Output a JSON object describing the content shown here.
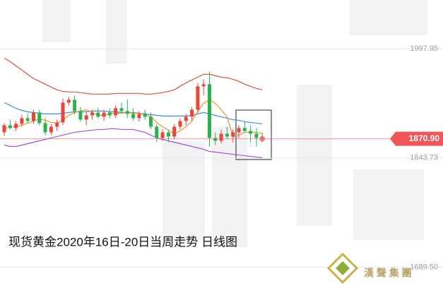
{
  "chart_data": {
    "type": "candlestick",
    "title": "现货黄金2020年16日-20日当周走势  日线图",
    "ylim": [
      1660,
      2067
    ],
    "yticks": [
      1997.95,
      1843.73,
      {
        "value": 1689.5,
        "label": "1689.50"
      }
    ],
    "grid": true,
    "up_color": "#e8453c",
    "down_color": "#2bb24c",
    "last_price": {
      "value": 1870.9,
      "label": "1870.90",
      "color": "#f0555a"
    },
    "open": [
      1880,
      1890,
      1886,
      1892,
      1900,
      1896,
      1908,
      1893,
      1880,
      1888,
      1894,
      1922,
      1926,
      1910,
      1898,
      1904,
      1908,
      1902,
      1908,
      1904,
      1914,
      1910,
      1906,
      1900,
      1906,
      1902,
      1888,
      1872,
      1880,
      1874,
      1888,
      1896,
      1902,
      1912,
      1945,
      1948,
      1872,
      1868,
      1878,
      1874,
      1880,
      1886,
      1882,
      1878,
      1872
    ],
    "high": [
      1893,
      1898,
      1896,
      1905,
      1906,
      1912,
      1912,
      1900,
      1892,
      1898,
      1928,
      1930,
      1932,
      1916,
      1910,
      1912,
      1915,
      1912,
      1914,
      1918,
      1922,
      1926,
      1914,
      1910,
      1912,
      1908,
      1892,
      1884,
      1884,
      1892,
      1900,
      1906,
      1916,
      1950,
      1955,
      1966,
      1880,
      1884,
      1888,
      1884,
      1890,
      1896,
      1890,
      1886,
      1880
    ],
    "low": [
      1875,
      1884,
      1882,
      1888,
      1893,
      1892,
      1890,
      1876,
      1876,
      1882,
      1890,
      1918,
      1905,
      1895,
      1890,
      1898,
      1900,
      1896,
      1900,
      1900,
      1908,
      1900,
      1896,
      1895,
      1898,
      1885,
      1866,
      1868,
      1866,
      1870,
      1884,
      1890,
      1896,
      1908,
      1932,
      1860,
      1862,
      1864,
      1870,
      1866,
      1872,
      1880,
      1866,
      1860,
      1866
    ],
    "close": [
      1890,
      1886,
      1892,
      1900,
      1896,
      1908,
      1893,
      1880,
      1888,
      1894,
      1922,
      1926,
      1910,
      1898,
      1904,
      1908,
      1902,
      1908,
      1904,
      1914,
      1910,
      1906,
      1900,
      1906,
      1902,
      1888,
      1872,
      1880,
      1874,
      1888,
      1896,
      1902,
      1912,
      1945,
      1948,
      1872,
      1868,
      1878,
      1874,
      1880,
      1886,
      1882,
      1878,
      1872,
      1870.9
    ],
    "overlays": [
      {
        "color": "#d9543f",
        "values": [
          1985,
          1980,
          1974,
          1968,
          1962,
          1956,
          1952,
          1948,
          1944,
          1940,
          1938,
          1937,
          1937,
          1936,
          1935,
          1934,
          1934,
          1934,
          1934,
          1935,
          1935,
          1935,
          1935,
          1935,
          1934,
          1934,
          1935,
          1936,
          1938,
          1940,
          1945,
          1950,
          1954,
          1958,
          1962,
          1962,
          1960,
          1958,
          1957,
          1955,
          1952,
          1948,
          1945,
          1942,
          1940
        ]
      },
      {
        "color": "#3b8fe4",
        "values": [
          1922,
          1918,
          1914,
          1911,
          1909,
          1908,
          1907,
          1906,
          1906,
          1906,
          1907,
          1908,
          1909,
          1909,
          1909,
          1910,
          1910,
          1910,
          1909,
          1909,
          1908,
          1908,
          1908,
          1907,
          1906,
          1905,
          1904,
          1903,
          1903,
          1903,
          1903,
          1903,
          1904,
          1906,
          1908,
          1906,
          1904,
          1902,
          1900,
          1898,
          1897,
          1895,
          1894,
          1893,
          1892
        ]
      },
      {
        "color": "#a64fe0",
        "values": [
          1862,
          1860,
          1860,
          1862,
          1864,
          1866,
          1868,
          1870,
          1872,
          1874,
          1876,
          1878,
          1880,
          1881,
          1882,
          1883,
          1884,
          1884,
          1885,
          1885,
          1884,
          1884,
          1884,
          1882,
          1880,
          1876,
          1872,
          1870,
          1868,
          1866,
          1864,
          1862,
          1860,
          1858,
          1856,
          1853,
          1852,
          1851,
          1850,
          1849,
          1848,
          1847,
          1846,
          1845,
          1844
        ]
      },
      {
        "color": "#f0922b",
        "values": [
          1886,
          1887,
          1888,
          1890,
          1893,
          1896,
          1899,
          1897,
          1894,
          1893,
          1897,
          1904,
          1908,
          1910,
          1912,
          1908,
          1904,
          1904,
          1906,
          1907,
          1907,
          1908,
          1907,
          1907,
          1905,
          1902,
          1894,
          1888,
          1883,
          1878,
          1882,
          1888,
          1896,
          1909,
          1921,
          1926,
          1921,
          1912,
          1902,
          1874,
          1876,
          1880,
          1880,
          1880,
          1878
        ]
      }
    ]
  },
  "logo_text": "漢 聲 集 團"
}
